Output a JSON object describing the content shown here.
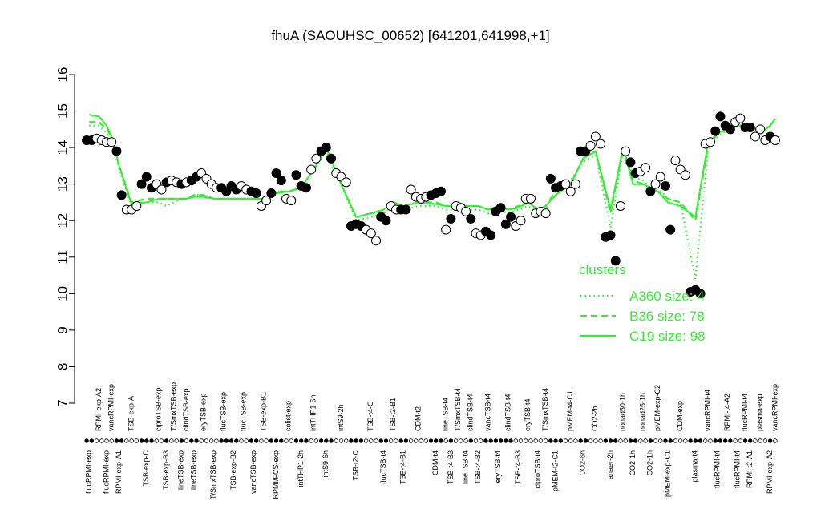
{
  "chart_data": {
    "type": "scatter",
    "title": "fhuA (SAOUHSC_00652) [641201,641998,+1]",
    "ylim": [
      7,
      16
    ],
    "yticks": [
      7,
      8,
      9,
      10,
      11,
      12,
      13,
      14,
      15,
      16
    ],
    "samples": [
      {
        "label": "flucRPMI-exp",
        "filled": true,
        "values": [
          14.2,
          14.2
        ]
      },
      {
        "label": "RPMI-exp-A2",
        "filled": false,
        "values": [
          14.25,
          14.2
        ]
      },
      {
        "label": "flucRPMI-exp",
        "filled": false,
        "values": [
          14.15
        ]
      },
      {
        "label": "vancRPMI-exp",
        "filled": false,
        "values": [
          14.15
        ]
      },
      {
        "label": "RPMI-exp-A1",
        "filled": true,
        "values": [
          13.9,
          12.7
        ]
      },
      {
        "label": "TSB-exp-A",
        "filled": false,
        "values": [
          12.3,
          12.3,
          12.4
        ]
      },
      {
        "label": "TSB-exp-C",
        "filled": true,
        "values": [
          13.0,
          13.2,
          12.9
        ]
      },
      {
        "label": "ciproTSB-exp",
        "filled": false,
        "values": [
          13.0,
          12.85
        ]
      },
      {
        "label": "TSB-exp-B3",
        "filled": true,
        "values": [
          13.05
        ]
      },
      {
        "label": "T/SmxTSB-exp",
        "filled": false,
        "values": [
          13.1,
          13.05
        ]
      },
      {
        "label": "lineTSB-exp",
        "filled": true,
        "values": [
          13.0
        ]
      },
      {
        "label": "clindTSB-exp",
        "filled": false,
        "values": [
          13.05
        ]
      },
      {
        "label": "lineTSB-exp",
        "filled": true,
        "values": [
          13.1,
          13.2
        ]
      },
      {
        "label": "eryTSB-exp",
        "filled": false,
        "values": [
          13.3,
          13.15
        ]
      },
      {
        "label": "T/SmxTSB-exp",
        "filled": false,
        "values": [
          13.0,
          12.9
        ]
      },
      {
        "label": "flucTSB-exp",
        "filled": true,
        "values": [
          12.9,
          12.8
        ]
      },
      {
        "label": "TSB-exp-B2",
        "filled": true,
        "values": [
          12.95,
          12.85
        ]
      },
      {
        "label": "flucTSB-exp",
        "filled": false,
        "values": [
          12.95,
          12.85
        ]
      },
      {
        "label": "vancTSB-exp",
        "filled": true,
        "values": [
          12.8,
          12.75
        ]
      },
      {
        "label": "TSB-exp-B1",
        "filled": false,
        "values": [
          12.4,
          12.55
        ]
      },
      {
        "label": "RPMI/FCS-exp",
        "filled": true,
        "values": [
          12.75,
          13.3,
          13.1
        ]
      },
      {
        "label": "colist-exp",
        "filled": false,
        "values": [
          12.6,
          12.55
        ]
      },
      {
        "label": "intTHP1-2h",
        "filled": true,
        "values": [
          13.25,
          12.95,
          12.9
        ]
      },
      {
        "label": "intTHP1-6h",
        "filled": false,
        "values": [
          13.4,
          13.7
        ]
      },
      {
        "label": "intS9-6h",
        "filled": true,
        "values": [
          13.9,
          14.0,
          13.7
        ]
      },
      {
        "label": "intS9-2h",
        "filled": false,
        "values": [
          13.3,
          13.2,
          13.05
        ]
      },
      {
        "label": "TSB-t2-C",
        "filled": true,
        "values": [
          11.85,
          11.9,
          11.85
        ]
      },
      {
        "label": "TSB-t4-C",
        "filled": false,
        "values": [
          11.75,
          11.65,
          11.45
        ]
      },
      {
        "label": "flucTSB-t4",
        "filled": true,
        "values": [
          12.1,
          12.0
        ]
      },
      {
        "label": "TSB-t2-B1",
        "filled": false,
        "values": [
          12.4,
          12.3
        ]
      },
      {
        "label": "TSB-t4-B1",
        "filled": true,
        "values": [
          12.3,
          12.3
        ]
      },
      {
        "label": "CDM-t2",
        "filled": false,
        "values": [
          12.85,
          12.65,
          12.6,
          12.65
        ]
      },
      {
        "label": "CDM-t4",
        "filled": true,
        "values": [
          12.7,
          12.75,
          12.8
        ]
      },
      {
        "label": "lineTSB-t4",
        "filled": false,
        "values": [
          11.75
        ]
      },
      {
        "label": "TSB-t4-B3",
        "filled": true,
        "values": [
          12.05
        ]
      },
      {
        "label": "T/SmxTSB-t4",
        "filled": false,
        "values": [
          12.4,
          12.35
        ]
      },
      {
        "label": "lineTSB-t4",
        "filled": false,
        "values": [
          12.25
        ]
      },
      {
        "label": "clindTSB-t4",
        "filled": true,
        "values": [
          12.05
        ]
      },
      {
        "label": "TSB-t4-B2",
        "filled": false,
        "values": [
          11.65,
          11.6
        ]
      },
      {
        "label": "vancTSB-t4",
        "filled": true,
        "values": [
          11.7,
          11.6
        ]
      },
      {
        "label": "eryTSB-t4",
        "filled": true,
        "values": [
          12.25,
          12.35
        ]
      },
      {
        "label": "clindTSB-t4",
        "filled": true,
        "values": [
          11.9,
          12.1
        ]
      },
      {
        "label": "TSB-t4-B3",
        "filled": false,
        "values": [
          11.85,
          12.0
        ]
      },
      {
        "label": "eryTSB-t4",
        "filled": false,
        "values": [
          12.6,
          12.6
        ]
      },
      {
        "label": "ciproTSB-t4",
        "filled": false,
        "values": [
          12.2,
          12.25
        ]
      },
      {
        "label": "T/SmxTSB-t4",
        "filled": false,
        "values": [
          12.2
        ]
      },
      {
        "label": "pMEM-t2-C1",
        "filled": true,
        "values": [
          13.15,
          12.9,
          12.95
        ]
      },
      {
        "label": "pMEM-t4-C1",
        "filled": false,
        "values": [
          13.0,
          12.8,
          13.0
        ]
      },
      {
        "label": "CO2-6h",
        "filled": true,
        "values": [
          13.9,
          13.9
        ]
      },
      {
        "label": "CO2-2h",
        "filled": false,
        "values": [
          14.05,
          14.3,
          14.1
        ]
      },
      {
        "label": "anaer-2h",
        "filled": true,
        "values": [
          11.55,
          11.6,
          10.9
        ]
      },
      {
        "label": "nonad50-1h",
        "filled": false,
        "values": [
          12.4,
          13.9
        ]
      },
      {
        "label": "CO2-1h",
        "filled": true,
        "values": [
          13.6,
          13.3
        ]
      },
      {
        "label": "nonad25-1h",
        "filled": false,
        "values": [
          13.35,
          13.45
        ]
      },
      {
        "label": "CO2-1h",
        "filled": true,
        "values": [
          12.8
        ]
      },
      {
        "label": "pMEM-exp-C2",
        "filled": false,
        "values": [
          13.0,
          13.2
        ]
      },
      {
        "label": "pMEM-exp-C1",
        "filled": true,
        "values": [
          12.95,
          11.75
        ]
      },
      {
        "label": "CDM-exp",
        "filled": false,
        "values": [
          13.65,
          13.4,
          13.25
        ]
      },
      {
        "label": "plasma-t4",
        "filled": true,
        "values": [
          10.05,
          10.1,
          10.0
        ]
      },
      {
        "label": "vancRPMI-t4",
        "filled": false,
        "values": [
          14.1,
          14.15
        ]
      },
      {
        "label": "flucRPMI-t4",
        "filled": true,
        "values": [
          14.45,
          14.85
        ]
      },
      {
        "label": "RPMI-t4-A2",
        "filled": true,
        "values": [
          14.6,
          14.5
        ]
      },
      {
        "label": "flucRPMI-t4",
        "filled": false,
        "values": [
          14.7,
          14.8
        ]
      },
      {
        "label": "flucRPMI-t4",
        "filled": true,
        "values": [
          14.55
        ]
      },
      {
        "label": "RPMI-t2-A1",
        "filled": true,
        "values": [
          14.55
        ]
      },
      {
        "label": "plasma-exp",
        "filled": false,
        "values": [
          14.3,
          14.5,
          14.2
        ]
      },
      {
        "label": "RPMI-exp-A2",
        "filled": true,
        "values": [
          14.3
        ]
      },
      {
        "label": "vancRPMI-exp",
        "filled": false,
        "values": [
          14.2
        ]
      }
    ],
    "legend_title": "clusters",
    "series": [
      {
        "name": "A360 size: 4",
        "color": "#33ee33",
        "style": "dotted",
        "values": [
          14.6,
          14.6,
          14.4,
          14.2,
          13.4,
          12.4,
          12.5,
          12.5,
          12.4,
          12.5,
          12.6,
          12.6,
          12.7,
          12.7,
          12.6,
          12.6,
          12.6,
          12.6,
          12.6,
          12.6,
          12.8,
          12.8,
          12.9,
          13.4,
          13.9,
          13.0,
          12.0,
          12.1,
          12.2,
          12.4,
          12.3,
          12.4,
          12.4,
          12.3,
          12.3,
          12.4,
          12.3,
          12.3,
          12.3,
          12.2,
          12.3,
          12.2,
          12.3,
          12.4,
          12.2,
          12.3,
          12.9,
          13.1,
          13.6,
          13.8,
          11.8,
          13.9,
          13.2,
          13.1,
          12.9,
          12.9,
          12.6,
          12.5,
          10.4,
          13.9,
          14.3,
          14.5,
          14.6,
          14.6,
          14.6,
          14.4,
          14.6,
          14.7
        ]
      },
      {
        "name": "B36 size: 78",
        "color": "#33ee33",
        "style": "dashed",
        "values": [
          14.7,
          14.7,
          14.5,
          14.3,
          13.5,
          12.5,
          12.6,
          12.6,
          12.6,
          12.6,
          12.6,
          12.6,
          12.7,
          12.7,
          12.6,
          12.6,
          12.6,
          12.6,
          12.6,
          12.6,
          12.8,
          12.8,
          12.9,
          13.4,
          14.0,
          13.0,
          12.1,
          12.2,
          12.3,
          12.5,
          12.4,
          12.5,
          12.5,
          12.4,
          12.4,
          12.5,
          12.4,
          12.4,
          12.4,
          12.3,
          12.4,
          12.3,
          12.4,
          12.5,
          12.3,
          12.4,
          12.8,
          13.0,
          13.7,
          13.9,
          12.2,
          14.0,
          13.1,
          13.0,
          12.9,
          12.8,
          12.6,
          12.5,
          12.0,
          14.0,
          14.4,
          14.5,
          14.6,
          14.6,
          14.6,
          14.4,
          14.6,
          14.8
        ]
      },
      {
        "name": "C19 size: 98",
        "color": "#33ee33",
        "style": "solid",
        "values": [
          14.9,
          14.85,
          14.6,
          14.3,
          13.5,
          12.45,
          12.5,
          12.6,
          12.6,
          12.6,
          12.6,
          12.6,
          12.65,
          12.65,
          12.6,
          12.6,
          12.6,
          12.6,
          12.6,
          12.6,
          12.75,
          12.8,
          12.9,
          13.4,
          14.0,
          13.0,
          12.1,
          12.2,
          12.3,
          12.5,
          12.4,
          12.5,
          12.45,
          12.4,
          12.4,
          12.45,
          12.4,
          12.4,
          12.4,
          12.3,
          12.4,
          12.3,
          12.35,
          12.5,
          12.3,
          12.4,
          12.7,
          13.0,
          13.7,
          13.9,
          12.3,
          14.0,
          13.0,
          13.0,
          12.9,
          12.8,
          12.5,
          12.4,
          12.1,
          14.1,
          14.4,
          14.5,
          14.6,
          14.6,
          14.6,
          14.4,
          14.6,
          14.8
        ]
      }
    ]
  }
}
